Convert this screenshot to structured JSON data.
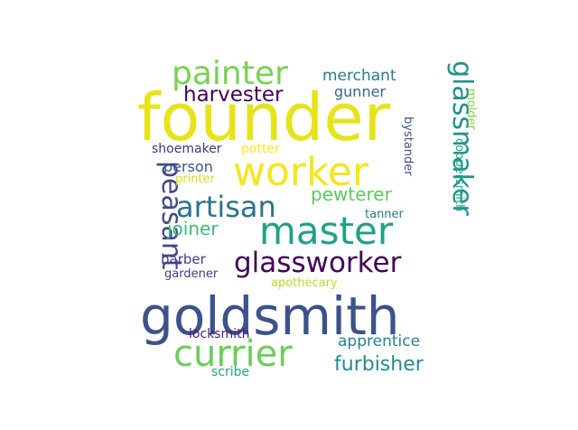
{
  "words": [
    {
      "text": "founder",
      "color": "#e5e419"
    },
    {
      "text": "goldsmith",
      "color": "#3b528b"
    },
    {
      "text": "worker",
      "color": "#f4e61e"
    },
    {
      "text": "master",
      "color": "#1fa187"
    },
    {
      "text": "currier",
      "color": "#6ccd5a"
    },
    {
      "text": "painter",
      "color": "#7ad151"
    },
    {
      "text": "glassworker",
      "color": "#440154"
    },
    {
      "text": "glassmaker",
      "color": "#21918c"
    },
    {
      "text": "peasant",
      "color": "#3e4a89"
    },
    {
      "text": "artisan",
      "color": "#2c728e"
    },
    {
      "text": "harvester",
      "color": "#440154"
    },
    {
      "text": "furbisher",
      "color": "#228c8d"
    },
    {
      "text": "pewterer",
      "color": "#5ec962"
    },
    {
      "text": "joiner",
      "color": "#3dbc74"
    },
    {
      "text": "merchant",
      "color": "#2a788e"
    },
    {
      "text": "apprentice",
      "color": "#26828e"
    },
    {
      "text": "gunner",
      "color": "#31688e"
    },
    {
      "text": "person",
      "color": "#3b528b"
    },
    {
      "text": "barber",
      "color": "#433e85"
    },
    {
      "text": "shoemaker",
      "color": "#46327e"
    },
    {
      "text": "potter",
      "color": "#fde725"
    },
    {
      "text": "locksmith",
      "color": "#481f70"
    },
    {
      "text": "scribe",
      "color": "#20a486"
    },
    {
      "text": "gardener",
      "color": "#443a83"
    },
    {
      "text": "printer",
      "color": "#d2e21b"
    },
    {
      "text": "apothecary",
      "color": "#b5de2b"
    },
    {
      "text": "tanner",
      "color": "#2a788e"
    },
    {
      "text": "bystander",
      "color": "#3b528b"
    },
    {
      "text": "coppersmith",
      "color": "#22a884"
    },
    {
      "text": "molder",
      "color": "#86d549"
    }
  ]
}
